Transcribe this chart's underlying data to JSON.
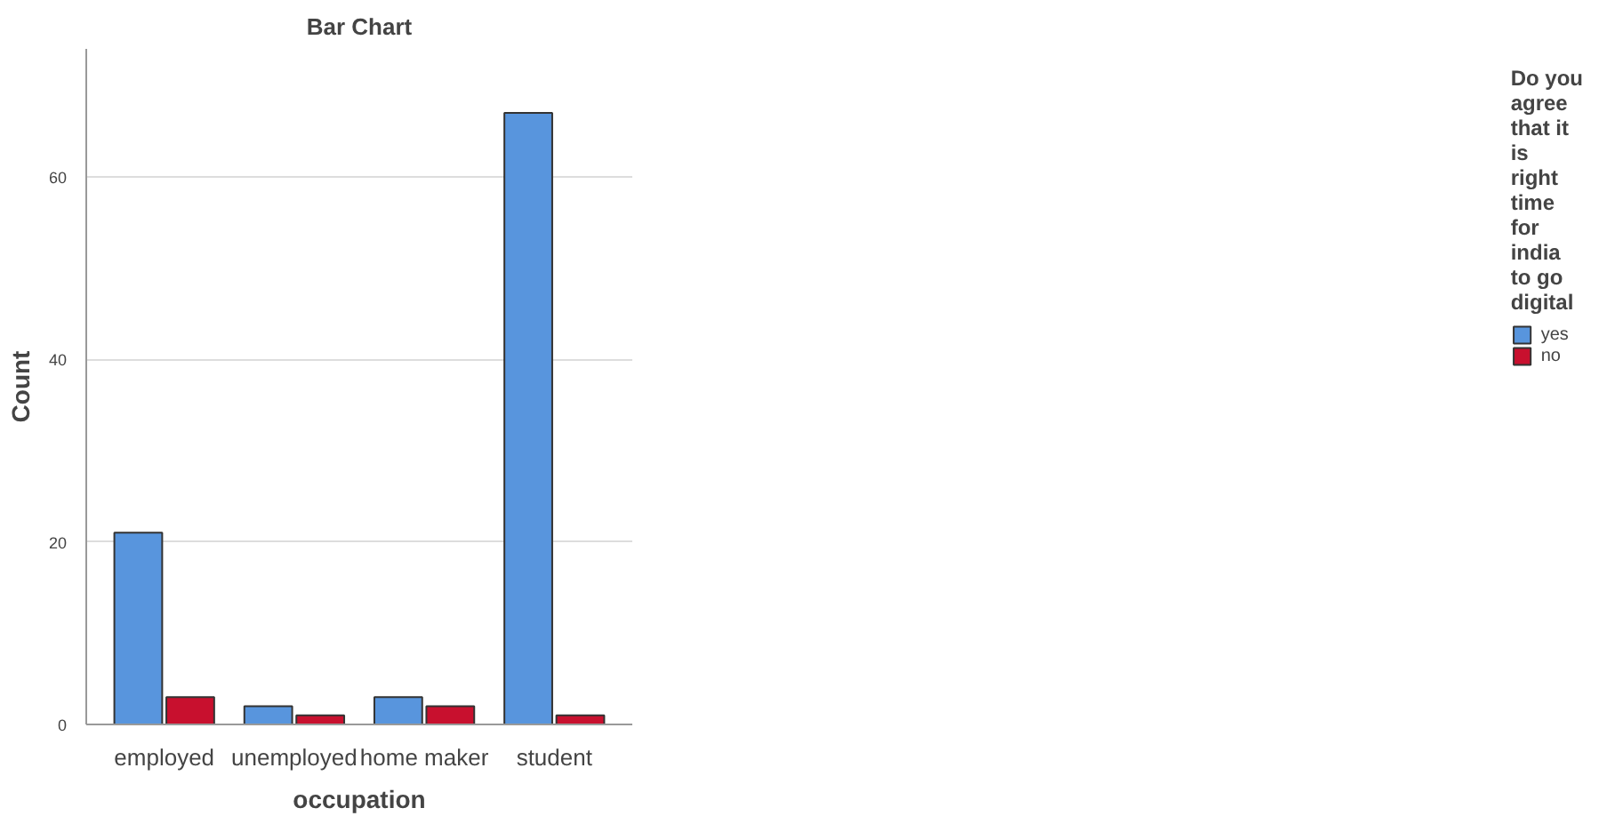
{
  "chart_data": {
    "type": "bar",
    "title": "Bar Chart",
    "xlabel": "occupation",
    "ylabel": "Count",
    "categories": [
      "employed",
      "unemployed",
      "home maker",
      "student"
    ],
    "legend_title": "Do you agree that it is right time for india to go digital",
    "series": [
      {
        "name": "yes",
        "color": "#5895dd",
        "values": [
          21,
          2,
          3,
          67
        ]
      },
      {
        "name": "no",
        "color": "#c8102e",
        "values": [
          3,
          1,
          2,
          1
        ]
      }
    ],
    "ylim": [
      0,
      74
    ],
    "yticks": [
      0,
      20,
      40,
      60
    ],
    "grid": "y",
    "legend": "right"
  }
}
